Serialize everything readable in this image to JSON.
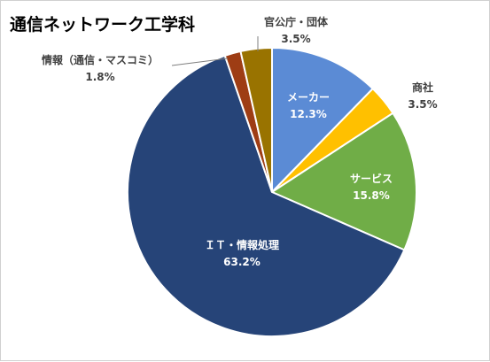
{
  "chart_data": {
    "type": "pie",
    "title": "通信ネットワーク工学科",
    "start_angle_deg": 0,
    "direction": "clockwise",
    "slices": [
      {
        "label": "メーカー",
        "value": 12.3,
        "value_text": "12.3%",
        "color": "#5b8bd5",
        "label_placement": "inside"
      },
      {
        "label": "商社",
        "value": 3.5,
        "value_text": "3.5%",
        "color": "#ffc000",
        "label_placement": "outside"
      },
      {
        "label": "サービス",
        "value": 15.8,
        "value_text": "15.8%",
        "color": "#70ad47",
        "label_placement": "inside"
      },
      {
        "label": "ＩＴ・情報処理",
        "value": 63.2,
        "value_text": "63.2%",
        "color": "#264478",
        "label_placement": "inside"
      },
      {
        "label": "情報（通信・マスコミ）",
        "value": 1.8,
        "value_text": "1.8%",
        "color": "#9e3d14",
        "label_placement": "outside"
      },
      {
        "label": "官公庁・団体",
        "value": 3.5,
        "value_text": "3.5%",
        "color": "#997300",
        "label_placement": "outside"
      }
    ],
    "legend": "none"
  }
}
